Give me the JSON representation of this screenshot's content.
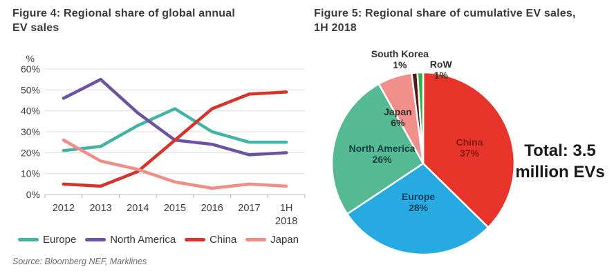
{
  "figure4": {
    "title_lines": [
      "Figure 4: Regional share of global annual",
      "EV sales"
    ],
    "y_unit": "%",
    "source": "Source: Bloomberg NEF, Marklines"
  },
  "figure5": {
    "title_lines": [
      "Figure 5: Regional share of cumulative EV sales,",
      "1H 2018"
    ],
    "total_lines": [
      "Total: 3.5",
      "million EVs"
    ]
  },
  "chart_data": [
    {
      "type": "line",
      "title": "Figure 4: Regional share of global annual EV sales",
      "categories": [
        "2012",
        "2013",
        "2014",
        "2015",
        "2016",
        "2017",
        "1H 2018"
      ],
      "series": [
        {
          "name": "Europe",
          "color": "#43b3a4",
          "values": [
            21,
            23,
            33,
            41,
            30,
            25,
            25
          ]
        },
        {
          "name": "North America",
          "color": "#6b52a3",
          "values": [
            46,
            55,
            39,
            26,
            24,
            19,
            20
          ]
        },
        {
          "name": "China",
          "color": "#d8332b",
          "values": [
            5,
            4,
            11,
            26,
            41,
            48,
            49
          ]
        },
        {
          "name": "Japan",
          "color": "#ef8d87",
          "values": [
            26,
            16,
            12,
            6,
            3,
            5,
            4
          ]
        }
      ],
      "ylabel": "%",
      "ylim": [
        0,
        60
      ],
      "ytick_step": 10,
      "ytick_suffix": "%",
      "grid": true,
      "legend_position": "bottom",
      "source": "Source: Bloomberg NEF, Marklines"
    },
    {
      "type": "pie",
      "title": "Figure 5: Regional share of cumulative EV sales, 1H 2018",
      "slices": [
        {
          "label": "China",
          "pct": 37,
          "color": "#e8352b",
          "label_color": "#871911"
        },
        {
          "label": "Europe",
          "pct": 28,
          "color": "#26aae1",
          "label_color": "#14425f"
        },
        {
          "label": "North America",
          "pct": 26,
          "color": "#55b993",
          "label_color": "#143f3f"
        },
        {
          "label": "Japan",
          "pct": 6,
          "color": "#f1908b",
          "label_color": "#33302c"
        },
        {
          "label": "South Korea",
          "pct": 1,
          "color": "#521a1d",
          "label_color": "#33302c"
        },
        {
          "label": "RoW",
          "pct": 1,
          "color": "#2cb34a",
          "label_color": "#33302c"
        }
      ],
      "annotation": "Total: 3.5 million EVs",
      "start_angle_deg": 0,
      "direction": "clockwise"
    }
  ]
}
